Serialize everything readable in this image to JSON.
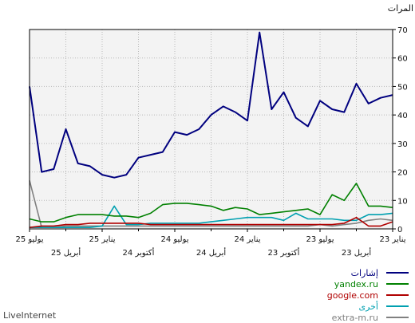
{
  "brand": "LiveInternet",
  "chart_data": {
    "type": "line",
    "ylabel": "المرات",
    "ylim": [
      0,
      70
    ],
    "yticks": [
      0,
      10,
      20,
      30,
      40,
      50,
      60,
      70
    ],
    "x_labels_row1": [
      "25 يوليو",
      "25 يناير",
      "24 يوليو",
      "24 يناير",
      "23 يوليو",
      "23 يناير"
    ],
    "x_labels_row2": [
      "25 أبريل",
      "24 أكتوبر",
      "24 أبريل",
      "23 أكتوبر",
      "23 أبريل"
    ],
    "grid": true,
    "legend_position": "bottom-right",
    "series": [
      {
        "name": "إشارات",
        "color": "#00007f",
        "values": [
          47,
          46,
          44,
          51,
          41,
          42,
          45,
          36,
          39,
          48,
          42,
          69,
          38,
          41,
          43,
          40,
          35,
          33,
          34,
          27,
          26,
          25,
          19,
          18,
          19,
          22,
          23,
          35,
          21,
          20,
          50
        ]
      },
      {
        "name": "yandex.ru",
        "color": "#008000",
        "values": [
          7.5,
          8,
          8,
          16,
          10,
          12,
          5,
          7,
          6.5,
          6,
          5.5,
          5,
          7,
          7.5,
          6.5,
          8,
          8.5,
          9,
          9,
          8.5,
          5.5,
          4,
          4.5,
          4.5,
          5,
          5,
          5,
          4,
          2.5,
          2.5,
          3.5
        ]
      },
      {
        "name": "google.com",
        "color": "#b00000",
        "values": [
          2.5,
          1,
          1,
          4,
          2,
          1.5,
          1.5,
          1.5,
          1.5,
          1.5,
          1.5,
          1.5,
          1.5,
          1.5,
          1.5,
          1.5,
          1.5,
          1.5,
          1.5,
          1.5,
          1.5,
          2,
          2,
          2,
          2,
          2,
          1.5,
          1.5,
          1,
          1,
          0.5
        ]
      },
      {
        "name": "أخرى",
        "color": "#00a0b0",
        "values": [
          5.5,
          5,
          5,
          3,
          3,
          3.5,
          3.5,
          3.5,
          5.5,
          3,
          4,
          4,
          4,
          3.5,
          3,
          2.5,
          2,
          2,
          2,
          2,
          2,
          1.5,
          1.5,
          8,
          1,
          0.5,
          0.5,
          0.5,
          0.5,
          0.5,
          0.5
        ]
      },
      {
        "name": "extra-m.ru",
        "color": "#808080",
        "values": [
          3,
          3.5,
          3,
          2,
          1.5,
          1,
          1.5,
          1,
          1,
          1,
          1,
          1,
          1,
          1,
          1,
          1,
          1,
          1,
          1,
          1,
          1,
          1,
          1,
          1,
          1,
          1,
          1,
          1,
          0.5,
          0.5,
          17
        ]
      }
    ]
  }
}
